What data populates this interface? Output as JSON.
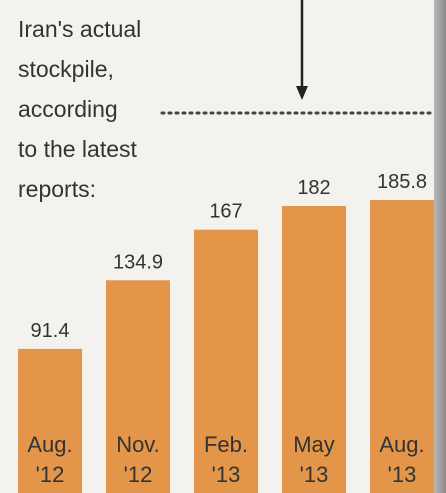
{
  "annotation": {
    "lines": [
      "Iran's actual",
      "stockpile,",
      "according",
      "to the latest",
      "reports:"
    ]
  },
  "colors": {
    "bar": "#e3964a",
    "text": "#333333",
    "arrow": "#222222",
    "dotted": "#444444"
  },
  "chart_data": {
    "type": "bar",
    "categories": [
      [
        "Aug.",
        "'12"
      ],
      [
        "Nov.",
        "'12"
      ],
      [
        "Feb.",
        "'13"
      ],
      [
        "May",
        "'13"
      ],
      [
        "Aug.",
        "'13"
      ]
    ],
    "values": [
      91.4,
      134.9,
      167,
      182,
      185.8
    ],
    "value_labels": [
      "91.4",
      "134.9",
      "167",
      "182",
      "185.8"
    ],
    "title": "",
    "xlabel": "",
    "ylabel": "",
    "ylim": [
      0,
      185.8
    ],
    "grid": false
  }
}
